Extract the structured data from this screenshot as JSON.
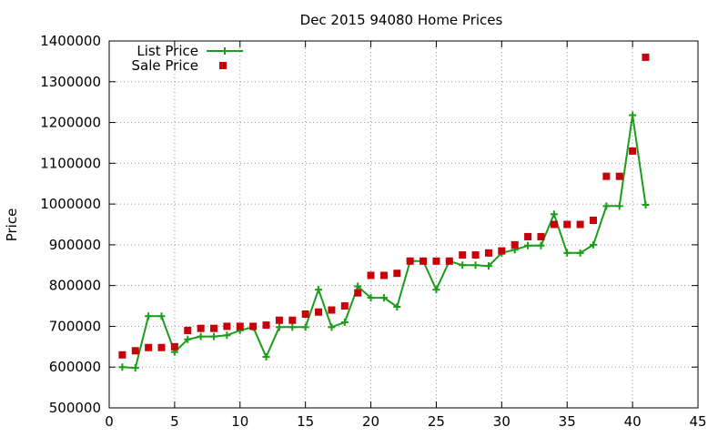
{
  "chart_data": {
    "type": "line",
    "title": "Dec 2015 94080 Home Prices",
    "xlabel": "",
    "ylabel": "Price",
    "xlim": [
      0,
      45
    ],
    "ylim": [
      500000,
      1400000
    ],
    "x_ticks": [
      "0",
      "5",
      "10",
      "15",
      "20",
      "25",
      "30",
      "35",
      "40",
      "45"
    ],
    "y_ticks": [
      "500000",
      "600000",
      "700000",
      "800000",
      "900000",
      "1000000",
      "1100000",
      "1200000",
      "1300000",
      "1400000"
    ],
    "grid": true,
    "legend_position": "top-left",
    "series": [
      {
        "name": "List Price",
        "style": "line-with-plus-markers",
        "color": "#1a9e1a",
        "points": [
          [
            1,
            600000
          ],
          [
            2,
            598000
          ],
          [
            3,
            725000
          ],
          [
            4,
            725000
          ],
          [
            5,
            637000
          ],
          [
            6,
            668000
          ],
          [
            7,
            675000
          ],
          [
            8,
            675000
          ],
          [
            9,
            678000
          ],
          [
            10,
            690000
          ],
          [
            11,
            698000
          ],
          [
            12,
            625000
          ],
          [
            13,
            698000
          ],
          [
            14,
            698000
          ],
          [
            15,
            698000
          ],
          [
            16,
            790000
          ],
          [
            17,
            698000
          ],
          [
            18,
            710000
          ],
          [
            19,
            798000
          ],
          [
            20,
            770000
          ],
          [
            21,
            770000
          ],
          [
            22,
            748000
          ],
          [
            23,
            860000
          ],
          [
            24,
            860000
          ],
          [
            25,
            790000
          ],
          [
            26,
            860000
          ],
          [
            27,
            850000
          ],
          [
            28,
            850000
          ],
          [
            29,
            848000
          ],
          [
            30,
            880000
          ],
          [
            31,
            888000
          ],
          [
            32,
            898000
          ],
          [
            33,
            898000
          ],
          [
            34,
            975000
          ],
          [
            35,
            880000
          ],
          [
            36,
            880000
          ],
          [
            37,
            900000
          ],
          [
            38,
            995000
          ],
          [
            39,
            995000
          ],
          [
            40,
            1218000
          ],
          [
            41,
            998000
          ]
        ]
      },
      {
        "name": "Sale Price",
        "style": "square-markers",
        "color": "#c8000a",
        "points": [
          [
            1,
            630000
          ],
          [
            2,
            640000
          ],
          [
            3,
            648000
          ],
          [
            4,
            648000
          ],
          [
            5,
            650000
          ],
          [
            6,
            690000
          ],
          [
            7,
            695000
          ],
          [
            8,
            695000
          ],
          [
            9,
            700000
          ],
          [
            10,
            700000
          ],
          [
            11,
            700000
          ],
          [
            12,
            703000
          ],
          [
            13,
            715000
          ],
          [
            14,
            715000
          ],
          [
            15,
            730000
          ],
          [
            16,
            735000
          ],
          [
            17,
            740000
          ],
          [
            18,
            750000
          ],
          [
            19,
            782000
          ],
          [
            20,
            825000
          ],
          [
            21,
            825000
          ],
          [
            22,
            830000
          ],
          [
            23,
            860000
          ],
          [
            24,
            860000
          ],
          [
            25,
            860000
          ],
          [
            26,
            860000
          ],
          [
            27,
            875000
          ],
          [
            28,
            875000
          ],
          [
            29,
            880000
          ],
          [
            30,
            885000
          ],
          [
            31,
            900000
          ],
          [
            32,
            920000
          ],
          [
            33,
            920000
          ],
          [
            34,
            950000
          ],
          [
            35,
            950000
          ],
          [
            36,
            950000
          ],
          [
            37,
            960000
          ],
          [
            38,
            1068000
          ],
          [
            39,
            1068000
          ],
          [
            40,
            1130000
          ],
          [
            41,
            1360000
          ]
        ]
      }
    ]
  }
}
